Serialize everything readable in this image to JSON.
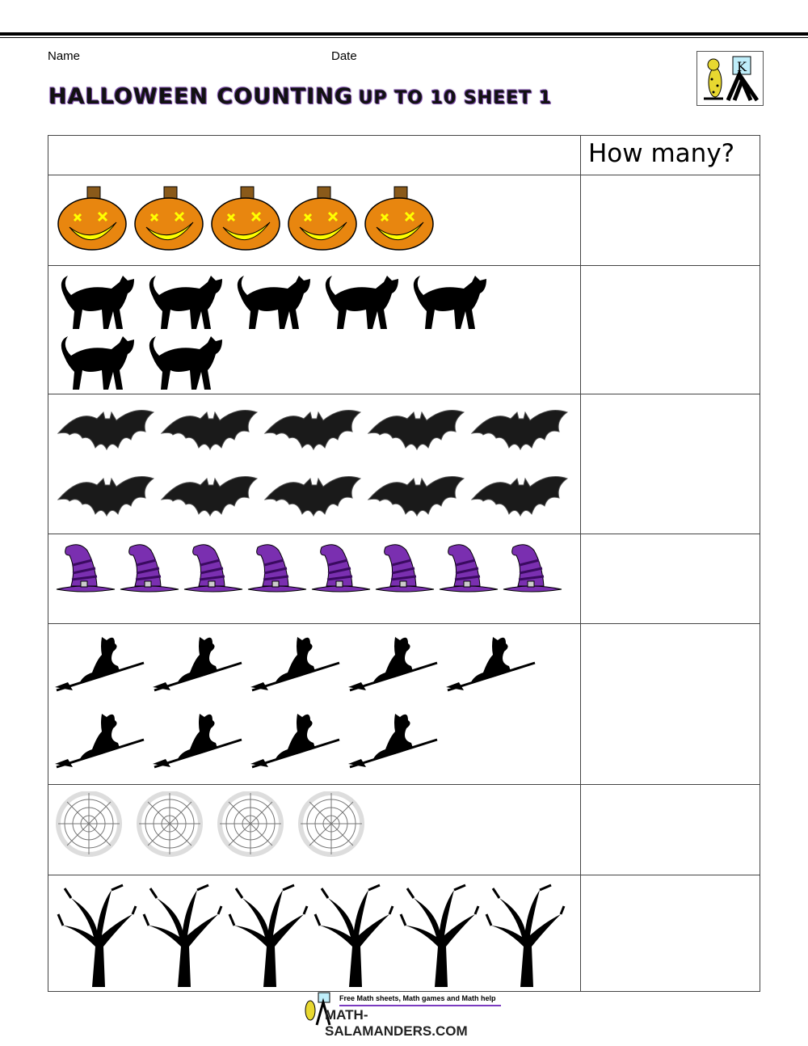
{
  "header": {
    "name_label": "Name",
    "date_label": "Date",
    "title_main": "HALLOWEEN COUNTING",
    "title_sub": "UP TO 10 SHEET 1",
    "logo_letter": "K"
  },
  "table": {
    "answer_header": "How many?",
    "rows": [
      {
        "item": "pumpkin",
        "count": 5
      },
      {
        "item": "cat",
        "count": 7
      },
      {
        "item": "bat",
        "count": 10
      },
      {
        "item": "witch-hat",
        "count": 8
      },
      {
        "item": "witch",
        "count": 9
      },
      {
        "item": "spider-web",
        "count": 4
      },
      {
        "item": "tree",
        "count": 6
      }
    ]
  },
  "footer": {
    "tagline": "Free Math sheets, Math games and Math help",
    "site": "MATH-SALAMANDERS.COM"
  },
  "colors": {
    "pumpkin": "#e8860f",
    "hat": "#7a2fb0",
    "title_outline": "#7a4aa8"
  }
}
